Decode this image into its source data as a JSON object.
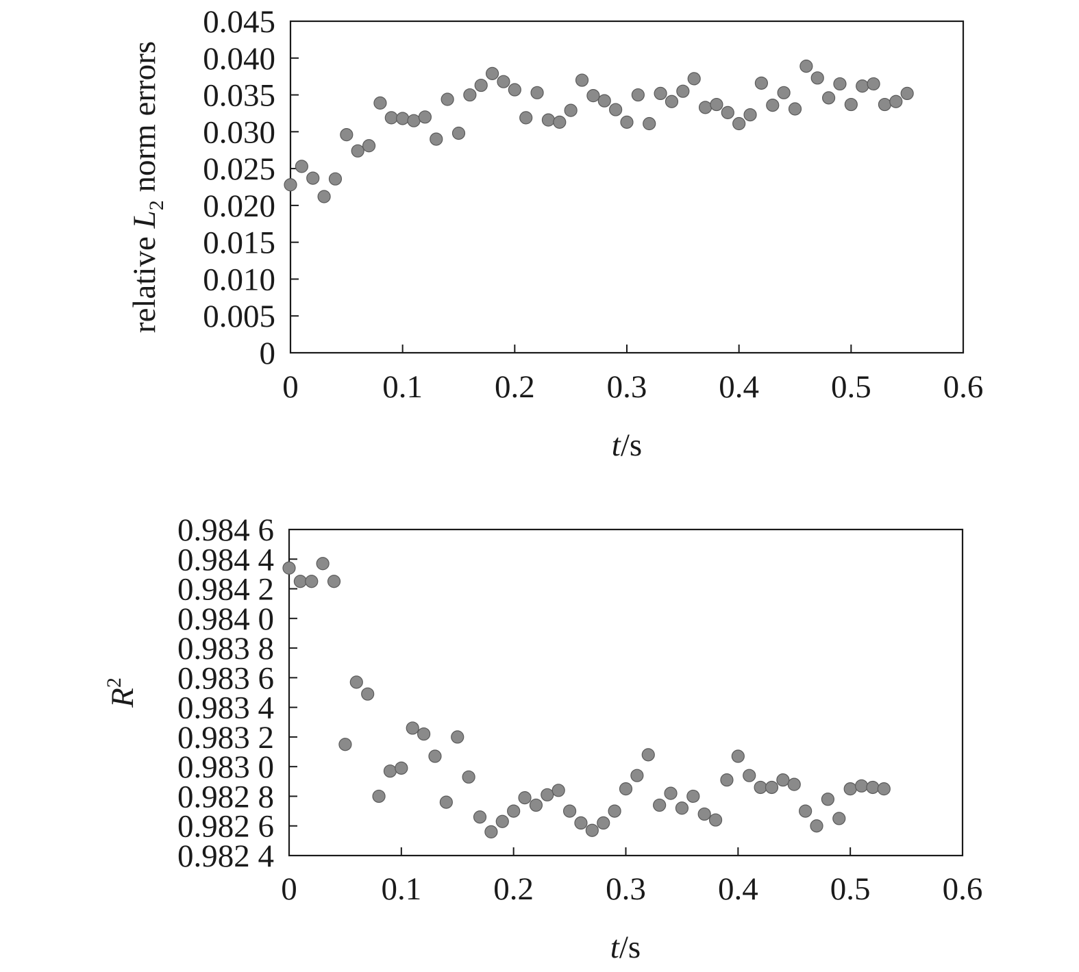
{
  "chart_data": [
    {
      "type": "scatter",
      "xlabel": {
        "italic": "t",
        "rest": "/s"
      },
      "ylabel": {
        "prefix": "relative ",
        "italic": "L",
        "sub": "2",
        "suffix": " norm errors"
      },
      "xlim": [
        0,
        0.6
      ],
      "ylim": [
        0,
        0.045
      ],
      "x_ticks": [
        "0",
        "0.1",
        "0.2",
        "0.3",
        "0.4",
        "0.5",
        "0.6"
      ],
      "y_ticks": [
        "0",
        "0.005",
        "0.010",
        "0.015",
        "0.020",
        "0.025",
        "0.030",
        "0.035",
        "0.040",
        "0.045"
      ],
      "grid": false,
      "color": "#8a8a8a",
      "x": [
        0,
        0.01,
        0.02,
        0.03,
        0.04,
        0.05,
        0.06,
        0.07,
        0.08,
        0.09,
        0.1,
        0.11,
        0.12,
        0.13,
        0.14,
        0.15,
        0.16,
        0.17,
        0.18,
        0.19,
        0.2,
        0.21,
        0.22,
        0.23,
        0.24,
        0.25,
        0.26,
        0.27,
        0.28,
        0.29,
        0.3,
        0.31,
        0.32,
        0.33,
        0.34,
        0.35,
        0.36,
        0.37,
        0.38,
        0.39,
        0.4,
        0.41,
        0.42,
        0.43,
        0.44,
        0.45,
        0.46,
        0.47,
        0.48,
        0.49,
        0.5,
        0.51,
        0.52,
        0.53,
        0.54,
        0.55
      ],
      "y": [
        0.0228,
        0.0253,
        0.0237,
        0.0212,
        0.0236,
        0.0296,
        0.0274,
        0.0281,
        0.0339,
        0.0319,
        0.0318,
        0.0315,
        0.032,
        0.029,
        0.0344,
        0.0298,
        0.035,
        0.0363,
        0.0379,
        0.0368,
        0.0357,
        0.0319,
        0.0353,
        0.0316,
        0.0313,
        0.0329,
        0.037,
        0.0349,
        0.0342,
        0.033,
        0.0313,
        0.035,
        0.0311,
        0.0352,
        0.0341,
        0.0355,
        0.0372,
        0.0333,
        0.0337,
        0.0326,
        0.0311,
        0.0323,
        0.0366,
        0.0336,
        0.0353,
        0.0331,
        0.0389,
        0.0373,
        0.0346,
        0.0365,
        0.0337,
        0.0362,
        0.0365,
        0.0337,
        0.0341,
        0.0352
      ]
    },
    {
      "type": "scatter",
      "xlabel": {
        "italic": "t",
        "rest": "/s"
      },
      "ylabel": {
        "italic": "R",
        "sup": "2"
      },
      "xlim": [
        0,
        0.6
      ],
      "ylim": [
        0.9824,
        0.9846
      ],
      "x_ticks": [
        "0",
        "0.1",
        "0.2",
        "0.3",
        "0.4",
        "0.5",
        "0.6"
      ],
      "y_ticks": [
        "0.982 4",
        "0.982 6",
        "0.982 8",
        "0.983 0",
        "0.983 2",
        "0.983 4",
        "0.983 6",
        "0.983 8",
        "0.984 0",
        "0.984 2",
        "0.984 4",
        "0.984 6"
      ],
      "grid": false,
      "color": "#8a8a8a",
      "x": [
        0,
        0.01,
        0.02,
        0.03,
        0.04,
        0.05,
        0.06,
        0.07,
        0.08,
        0.09,
        0.1,
        0.11,
        0.12,
        0.13,
        0.14,
        0.15,
        0.16,
        0.17,
        0.18,
        0.19,
        0.2,
        0.21,
        0.22,
        0.23,
        0.24,
        0.25,
        0.26,
        0.27,
        0.28,
        0.29,
        0.3,
        0.31,
        0.32,
        0.33,
        0.34,
        0.35,
        0.36,
        0.37,
        0.38,
        0.39,
        0.4,
        0.41,
        0.42,
        0.43,
        0.44,
        0.45,
        0.46,
        0.47,
        0.48,
        0.49,
        0.5,
        0.51,
        0.52,
        0.53
      ],
      "y": [
        0.98434,
        0.98425,
        0.98425,
        0.98437,
        0.98425,
        0.98315,
        0.98357,
        0.98349,
        0.9828,
        0.98297,
        0.98299,
        0.98326,
        0.98322,
        0.98307,
        0.98276,
        0.9832,
        0.98293,
        0.98266,
        0.98256,
        0.98263,
        0.9827,
        0.98279,
        0.98274,
        0.98281,
        0.98284,
        0.9827,
        0.98262,
        0.98257,
        0.98262,
        0.9827,
        0.98285,
        0.98294,
        0.98308,
        0.98274,
        0.98282,
        0.98272,
        0.9828,
        0.98268,
        0.98264,
        0.98291,
        0.98307,
        0.98294,
        0.98286,
        0.98286,
        0.98291,
        0.98288,
        0.9827,
        0.9826,
        0.98278,
        0.98265,
        0.98285,
        0.98287,
        0.98286,
        0.98285
      ]
    }
  ]
}
